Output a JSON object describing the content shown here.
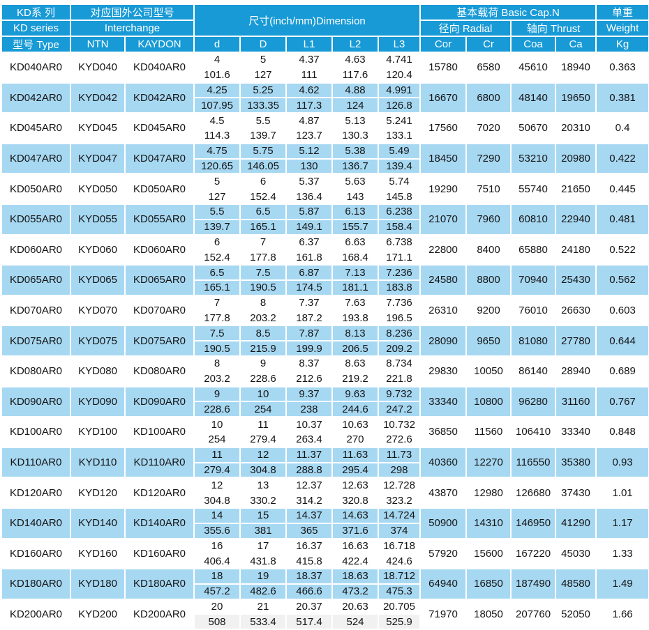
{
  "header": {
    "kd_series": {
      "line1": "KD系 列",
      "line2": "KD series"
    },
    "interchange": {
      "line1": "对应国外公司型号",
      "line2": "Interchange"
    },
    "dimension": {
      "title": "尺寸(inch/mm)Dimension"
    },
    "basic_cap": {
      "title": "基本载荷 Basic Cap.N",
      "radial": "径向 Radial",
      "thrust": "轴向 Thrust"
    },
    "weight": {
      "line1": "单重",
      "line2": "Weight"
    },
    "columns": [
      "型号 Type",
      "NTN",
      "KAYDON",
      "d",
      "D",
      "L1",
      "L2",
      "L3",
      "Cor",
      "Cr",
      "Coa",
      "Ca",
      "Kg"
    ]
  },
  "colors": {
    "header_blue": "#189ad6",
    "row_blue": "#a7d8f2",
    "row_white": "#ffffff",
    "shaded_gray": "#f1f1f1",
    "header_text": "#ffffff",
    "text": "#141414"
  },
  "rows": [
    {
      "type": "KD040AR0",
      "ntn": "KYD040",
      "kaydon": "KD040AR0",
      "d": [
        "4",
        "101.6"
      ],
      "D": [
        "5",
        "127"
      ],
      "L1": [
        "4.37",
        "111"
      ],
      "L2": [
        "4.63",
        "117.6"
      ],
      "L3": [
        "4.741",
        "120.4"
      ],
      "cor": "15780",
      "cr": "6580",
      "coa": "45610",
      "ca": "18940",
      "kg": "0.363"
    },
    {
      "type": "KD042AR0",
      "ntn": "KYD042",
      "kaydon": "KD042AR0",
      "d": [
        "4.25",
        "107.95"
      ],
      "D": [
        "5.25",
        "133.35"
      ],
      "L1": [
        "4.62",
        "117.3"
      ],
      "L2": [
        "4.88",
        "124"
      ],
      "L3": [
        "4.991",
        "126.8"
      ],
      "cor": "16670",
      "cr": "6800",
      "coa": "48140",
      "ca": "19650",
      "kg": "0.381"
    },
    {
      "type": "KD045AR0",
      "ntn": "KYD045",
      "kaydon": "KD045AR0",
      "d": [
        "4.5",
        "114.3"
      ],
      "D": [
        "5.5",
        "139.7"
      ],
      "L1": [
        "4.87",
        "123.7"
      ],
      "L2": [
        "5.13",
        "130.3"
      ],
      "L3": [
        "5.241",
        "133.1"
      ],
      "cor": "17560",
      "cr": "7020",
      "coa": "50670",
      "ca": "20310",
      "kg": "0.4"
    },
    {
      "type": "KD047AR0",
      "ntn": "KYD047",
      "kaydon": "KD047AR0",
      "d": [
        "4.75",
        "120.65"
      ],
      "D": [
        "5.75",
        "146.05"
      ],
      "L1": [
        "5.12",
        "130"
      ],
      "L2": [
        "5.38",
        "136.7"
      ],
      "L3": [
        "5.49",
        "139.4"
      ],
      "cor": "18450",
      "cr": "7290",
      "coa": "53210",
      "ca": "20980",
      "kg": "0.422"
    },
    {
      "type": "KD050AR0",
      "ntn": "KYD050",
      "kaydon": "KD050AR0",
      "d": [
        "5",
        "127"
      ],
      "D": [
        "6",
        "152.4"
      ],
      "L1": [
        "5.37",
        "136.4"
      ],
      "L2": [
        "5.63",
        "143"
      ],
      "L3": [
        "5.74",
        "145.8"
      ],
      "cor": "19290",
      "cr": "7510",
      "coa": "55740",
      "ca": "21650",
      "kg": "0.445"
    },
    {
      "type": "KD055AR0",
      "ntn": "KYD055",
      "kaydon": "KD055AR0",
      "d": [
        "5.5",
        "139.7"
      ],
      "D": [
        "6.5",
        "165.1"
      ],
      "L1": [
        "5.87",
        "149.1"
      ],
      "L2": [
        "6.13",
        "155.7"
      ],
      "L3": [
        "6.238",
        "158.4"
      ],
      "cor": "21070",
      "cr": "7960",
      "coa": "60810",
      "ca": "22940",
      "kg": "0.481"
    },
    {
      "type": "KD060AR0",
      "ntn": "KYD060",
      "kaydon": "KD060AR0",
      "d": [
        "6",
        "152.4"
      ],
      "D": [
        "7",
        "177.8"
      ],
      "L1": [
        "6.37",
        "161.8"
      ],
      "L2": [
        "6.63",
        "168.4"
      ],
      "L3": [
        "6.738",
        "171.1"
      ],
      "cor": "22800",
      "cr": "8400",
      "coa": "65880",
      "ca": "24180",
      "kg": "0.522"
    },
    {
      "type": "KD065AR0",
      "ntn": "KYD065",
      "kaydon": "KD065AR0",
      "d": [
        "6.5",
        "165.1"
      ],
      "D": [
        "7.5",
        "190.5"
      ],
      "L1": [
        "6.87",
        "174.5"
      ],
      "L2": [
        "7.13",
        "181.1"
      ],
      "L3": [
        "7.236",
        "183.8"
      ],
      "cor": "24580",
      "cr": "8800",
      "coa": "70940",
      "ca": "25430",
      "kg": "0.562"
    },
    {
      "type": "KD070AR0",
      "ntn": "KYD070",
      "kaydon": "KD070AR0",
      "d": [
        "7",
        "177.8"
      ],
      "D": [
        "8",
        "203.2"
      ],
      "L1": [
        "7.37",
        "187.2"
      ],
      "L2": [
        "7.63",
        "193.8"
      ],
      "L3": [
        "7.736",
        "196.5"
      ],
      "cor": "26310",
      "cr": "9200",
      "coa": "76010",
      "ca": "26630",
      "kg": "0.603"
    },
    {
      "type": "KD075AR0",
      "ntn": "KYD075",
      "kaydon": "KD075AR0",
      "d": [
        "7.5",
        "190.5"
      ],
      "D": [
        "8.5",
        "215.9"
      ],
      "L1": [
        "7.87",
        "199.9"
      ],
      "L2": [
        "8.13",
        "206.5"
      ],
      "L3": [
        "8.236",
        "209.2"
      ],
      "cor": "28090",
      "cr": "9650",
      "coa": "81080",
      "ca": "27780",
      "kg": "0.644"
    },
    {
      "type": "KD080AR0",
      "ntn": "KYD080",
      "kaydon": "KD080AR0",
      "d": [
        "8",
        "203.2"
      ],
      "D": [
        "9",
        "228.6"
      ],
      "L1": [
        "8.37",
        "212.6"
      ],
      "L2": [
        "8.63",
        "219.2"
      ],
      "L3": [
        "8.734",
        "221.8"
      ],
      "cor": "29830",
      "cr": "10050",
      "coa": "86140",
      "ca": "28940",
      "kg": "0.689"
    },
    {
      "type": "KD090AR0",
      "ntn": "KYD090",
      "kaydon": "KD090AR0",
      "d": [
        "9",
        "228.6"
      ],
      "D": [
        "10",
        "254"
      ],
      "L1": [
        "9.37",
        "238"
      ],
      "L2": [
        "9.63",
        "244.6"
      ],
      "L3": [
        "9.732",
        "247.2"
      ],
      "cor": "33340",
      "cr": "10800",
      "coa": "96280",
      "ca": "31160",
      "kg": "0.767"
    },
    {
      "type": "KD100AR0",
      "ntn": "KYD100",
      "kaydon": "KD100AR0",
      "d": [
        "10",
        "254"
      ],
      "D": [
        "11",
        "279.4"
      ],
      "L1": [
        "10.37",
        "263.4"
      ],
      "L2": [
        "10.63",
        "270"
      ],
      "L3": [
        "10.732",
        "272.6"
      ],
      "cor": "36850",
      "cr": "11560",
      "coa": "106410",
      "ca": "33340",
      "kg": "0.848"
    },
    {
      "type": "KD110AR0",
      "ntn": "KYD110",
      "kaydon": "KD110AR0",
      "d": [
        "11",
        "279.4"
      ],
      "D": [
        "12",
        "304.8"
      ],
      "L1": [
        "11.37",
        "288.8"
      ],
      "L2": [
        "11.63",
        "295.4"
      ],
      "L3": [
        "11.73",
        "298"
      ],
      "cor": "40360",
      "cr": "12270",
      "coa": "116550",
      "ca": "35380",
      "kg": "0.93"
    },
    {
      "type": "KD120AR0",
      "ntn": "KYD120",
      "kaydon": "KD120AR0",
      "d": [
        "12",
        "304.8"
      ],
      "D": [
        "13",
        "330.2"
      ],
      "L1": [
        "12.37",
        "314.2"
      ],
      "L2": [
        "12.63",
        "320.8"
      ],
      "L3": [
        "12.728",
        "323.2"
      ],
      "cor": "43870",
      "cr": "12980",
      "coa": "126680",
      "ca": "37430",
      "kg": "1.01"
    },
    {
      "type": "KD140AR0",
      "ntn": "KYD140",
      "kaydon": "KD140AR0",
      "d": [
        "14",
        "355.6"
      ],
      "D": [
        "15",
        "381"
      ],
      "L1": [
        "14.37",
        "365"
      ],
      "L2": [
        "14.63",
        "371.6"
      ],
      "L3": [
        "14.724",
        "374"
      ],
      "cor": "50900",
      "cr": "14310",
      "coa": "146950",
      "ca": "41290",
      "kg": "1.17"
    },
    {
      "type": "KD160AR0",
      "ntn": "KYD160",
      "kaydon": "KD160AR0",
      "d": [
        "16",
        "406.4"
      ],
      "D": [
        "17",
        "431.8"
      ],
      "L1": [
        "16.37",
        "415.8"
      ],
      "L2": [
        "16.63",
        "422.4"
      ],
      "L3": [
        "16.718",
        "424.6"
      ],
      "cor": "57920",
      "cr": "15600",
      "coa": "167220",
      "ca": "45030",
      "kg": "1.33"
    },
    {
      "type": "KD180AR0",
      "ntn": "KYD180",
      "kaydon": "KD180AR0",
      "d": [
        "18",
        "457.2"
      ],
      "D": [
        "19",
        "482.6"
      ],
      "L1": [
        "18.37",
        "466.6"
      ],
      "L2": [
        "18.63",
        "473.2"
      ],
      "L3": [
        "18.712",
        "475.3"
      ],
      "cor": "64940",
      "cr": "16850",
      "coa": "187490",
      "ca": "48580",
      "kg": "1.49"
    },
    {
      "type": "KD200AR0",
      "ntn": "KYD200",
      "kaydon": "KD200AR0",
      "d": [
        "20",
        "508"
      ],
      "D": [
        "21",
        "533.4"
      ],
      "L1": [
        "20.37",
        "517.4"
      ],
      "L2": [
        "20.63",
        "524"
      ],
      "L3": [
        "20.705",
        "525.9"
      ],
      "cor": "71970",
      "cr": "18050",
      "coa": "207760",
      "ca": "52050",
      "kg": "1.66"
    }
  ]
}
